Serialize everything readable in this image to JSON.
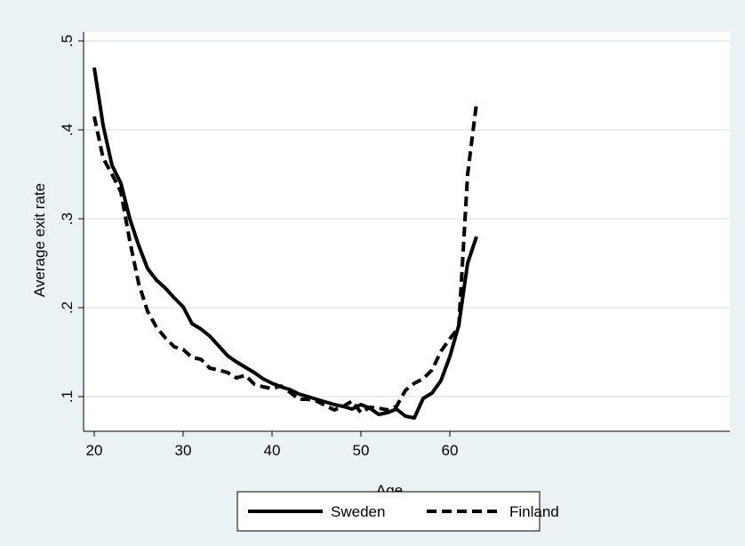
{
  "chart_data": {
    "type": "line",
    "xlabel": "Age",
    "ylabel": "Average exit rate",
    "xlim": [
      20,
      63
    ],
    "ylim": [
      0.07,
      0.5
    ],
    "xticks": [
      20,
      30,
      40,
      50,
      60
    ],
    "xtick_labels": [
      "20",
      "30",
      "40",
      "50",
      "60"
    ],
    "yticks": [
      0.1,
      0.2,
      0.3,
      0.4,
      0.5
    ],
    "ytick_labels": [
      ".1",
      ".2",
      ".3",
      ".4",
      ".5"
    ],
    "grid": "horizontal",
    "legend_position": "bottom",
    "x": [
      20,
      21,
      22,
      23,
      24,
      25,
      26,
      27,
      28,
      29,
      30,
      31,
      32,
      33,
      34,
      35,
      36,
      37,
      38,
      39,
      40,
      41,
      42,
      43,
      44,
      45,
      46,
      47,
      48,
      49,
      50,
      51,
      52,
      53,
      54,
      55,
      56,
      57,
      58,
      59,
      60,
      61,
      62,
      63
    ],
    "series": [
      {
        "name": "Sweden",
        "style": "solid",
        "values": [
          0.47,
          0.405,
          0.36,
          0.34,
          0.3,
          0.27,
          0.244,
          0.231,
          0.222,
          0.211,
          0.201,
          0.182,
          0.176,
          0.168,
          0.157,
          0.146,
          0.139,
          0.133,
          0.127,
          0.12,
          0.115,
          0.111,
          0.108,
          0.103,
          0.1,
          0.097,
          0.094,
          0.091,
          0.089,
          0.086,
          0.091,
          0.087,
          0.08,
          0.082,
          0.086,
          0.078,
          0.076,
          0.098,
          0.104,
          0.118,
          0.145,
          0.18,
          0.25,
          0.28
        ]
      },
      {
        "name": "Finland",
        "style": "dashed",
        "values": [
          0.415,
          0.368,
          0.35,
          0.33,
          0.275,
          0.227,
          0.196,
          0.178,
          0.166,
          0.156,
          0.153,
          0.144,
          0.142,
          0.132,
          0.13,
          0.127,
          0.121,
          0.124,
          0.114,
          0.111,
          0.109,
          0.112,
          0.105,
          0.097,
          0.097,
          0.095,
          0.09,
          0.085,
          0.089,
          0.095,
          0.082,
          0.088,
          0.087,
          0.085,
          0.089,
          0.107,
          0.115,
          0.12,
          0.13,
          0.151,
          0.165,
          0.178,
          0.35,
          0.43
        ]
      }
    ],
    "colors": {
      "page_bg": "#eaf2f3",
      "plot_bg": "#ffffff",
      "grid": "#dde8ea",
      "line": "#000000"
    }
  }
}
